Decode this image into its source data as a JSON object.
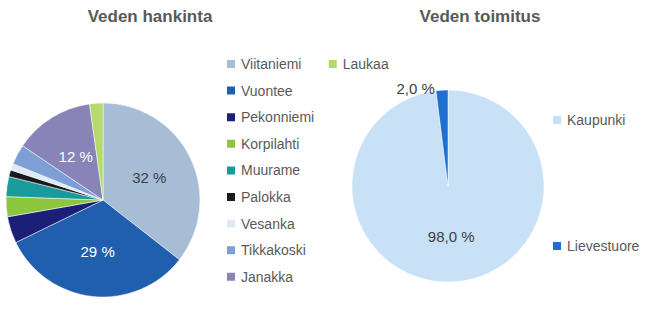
{
  "chart_data": [
    {
      "type": "pie",
      "title": "Veden hankinta",
      "categories": [
        "Viitaniemi",
        "Vuontee",
        "Pekonniemi",
        "Korpilahti",
        "Muurame",
        "Palokka",
        "Vesanka",
        "Tikkakoski",
        "Janakka",
        "Laukaa"
      ],
      "values": [
        32,
        29,
        4,
        3,
        3,
        1,
        1,
        3,
        12,
        2
      ],
      "value_labels": [
        "32 %",
        "29 %",
        null,
        null,
        null,
        null,
        null,
        null,
        "12 %",
        null
      ],
      "colors": [
        "#a7bdd6",
        "#1f5fae",
        "#1c1f78",
        "#8cc63e",
        "#1b9a9c",
        "#1a1a1a",
        "#dde9f5",
        "#7e9fd6",
        "#8884b8",
        "#b5d96c"
      ],
      "legend": "right",
      "data_labels": true
    },
    {
      "type": "pie",
      "title": "Veden toimitus",
      "categories": [
        "Kaupunki",
        "Lievestuore"
      ],
      "values": [
        98.0,
        2.0
      ],
      "value_labels": [
        "98,0 %",
        "2,0 %"
      ],
      "colors": [
        "#c9e1f6",
        "#1f6fd0"
      ],
      "legend": "right",
      "data_labels": true
    }
  ]
}
